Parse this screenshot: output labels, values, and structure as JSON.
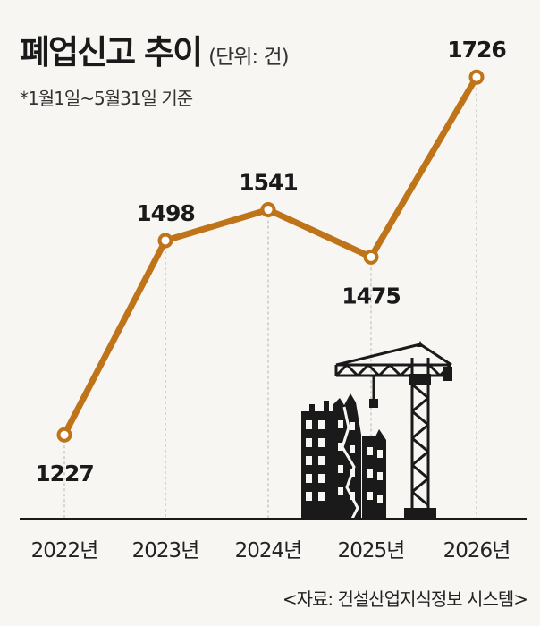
{
  "header": {
    "title": "폐업신고 추이",
    "unit": "(단위: 건)",
    "period": "*1월1일~5월31일 기준"
  },
  "source": "<자료: 건설산업지식정보 시스템>",
  "colors": {
    "line": "#c0741a",
    "background": "#f7f6f3",
    "illustration": "#1a1a1a"
  },
  "illustration": "building-crane-icon",
  "chart_data": {
    "type": "line",
    "categories": [
      "2022년",
      "2023년",
      "2024년",
      "2025년",
      "2026년"
    ],
    "series": [
      {
        "values": [
          1227,
          1498,
          1541,
          1475,
          1726
        ]
      }
    ],
    "data_labels": [
      "1227",
      "1498",
      "1541",
      "1475",
      "1726"
    ],
    "title": "폐업신고 추이",
    "xlabel": "",
    "ylabel": "",
    "ylim": [
      1110,
      1740
    ],
    "grid": "vertical dashed",
    "legend": "none"
  }
}
